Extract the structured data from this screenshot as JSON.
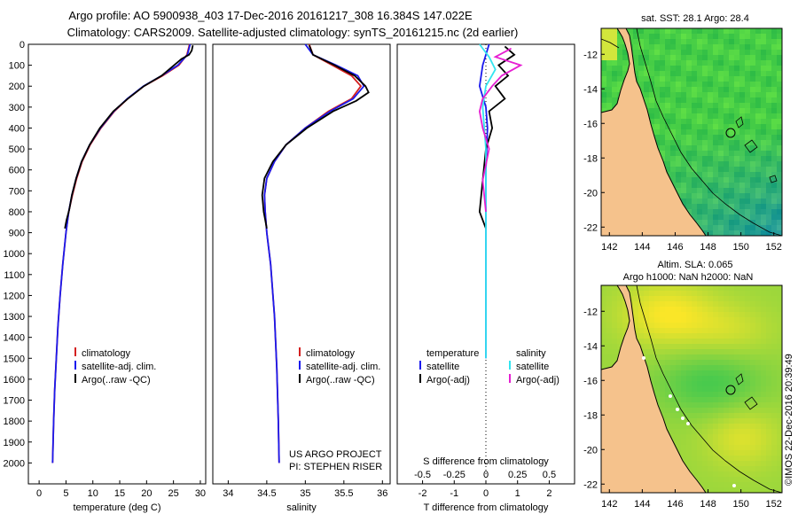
{
  "header": {
    "line1": "Argo profile: AO 5900938_403 17-Dec-2016 20161217_308 16.384S 147.022E",
    "line2": "Climatology: CARS2009. Satellite-adjusted climatology: synTS_20161215.nc (2d earlier)"
  },
  "colors": {
    "climatology": "#d42020",
    "satellite": "#1a1aee",
    "argo": "#000000",
    "sat_salinity": "#33e5f0",
    "argo_salinity": "#e61ed2",
    "land": "#f5c28c"
  },
  "chart_data": [
    {
      "id": "temperature",
      "type": "line",
      "xlabel": "temperature (deg C)",
      "ylabel": "",
      "xlim": [
        -2,
        31
      ],
      "ylim": [
        2100,
        0
      ],
      "xticks": [
        0,
        5,
        10,
        15,
        20,
        25,
        30
      ],
      "yticks": [
        0,
        100,
        200,
        300,
        400,
        500,
        600,
        700,
        800,
        900,
        1000,
        1100,
        1200,
        1300,
        1400,
        1500,
        1600,
        1700,
        1800,
        1900,
        2000
      ],
      "legend": [
        "climatology",
        "satellite-adj. clim.",
        "Argo(..raw -QC)"
      ],
      "series": [
        {
          "name": "climatology",
          "color": "#d42020",
          "x": [
            28.0,
            27.5,
            26,
            23,
            19.5,
            16.5,
            14,
            11.5,
            9.5,
            8,
            7,
            6.2,
            5.5,
            5,
            4.4,
            3.9,
            3.5,
            3.2,
            2.9,
            2.7,
            2.5
          ],
          "y": [
            0,
            50,
            100,
            150,
            200,
            260,
            320,
            400,
            480,
            560,
            640,
            720,
            800,
            900,
            1050,
            1200,
            1350,
            1500,
            1650,
            1800,
            2000
          ]
        },
        {
          "name": "satellite-adj. clim.",
          "color": "#1a1aee",
          "x": [
            28.1,
            27.6,
            25.8,
            22.8,
            19.4,
            16.4,
            13.9,
            11.4,
            9.4,
            7.9,
            6.9,
            6.1,
            5.5,
            5,
            4.4,
            3.9,
            3.5,
            3.2,
            2.9,
            2.7,
            2.5
          ],
          "y": [
            0,
            50,
            100,
            150,
            200,
            260,
            320,
            400,
            480,
            560,
            640,
            720,
            800,
            900,
            1050,
            1200,
            1350,
            1500,
            1650,
            1800,
            2000
          ]
        },
        {
          "name": "Argo(..raw -QC)",
          "color": "#000000",
          "x": [
            28.6,
            28.4,
            27.9,
            26.5,
            22.8,
            19.5,
            16.5,
            13.8,
            11.3,
            9.4,
            7.9,
            6.9,
            6.1,
            5.6,
            5.1,
            4.8
          ],
          "y": [
            5,
            30,
            50,
            70,
            150,
            200,
            260,
            320,
            400,
            480,
            560,
            640,
            720,
            790,
            840,
            880
          ]
        }
      ]
    },
    {
      "id": "salinity",
      "type": "line",
      "xlabel": "salinity",
      "ylabel": "",
      "xlim": [
        33.8,
        36.1
      ],
      "ylim": [
        2100,
        0
      ],
      "xticks": [
        34,
        34.5,
        35,
        35.5,
        36
      ],
      "legend": [
        "climatology",
        "satellite-adj. clim.",
        "Argo(..raw -QC)"
      ],
      "annotation": [
        "US ARGO PROJECT",
        "PI: STEPHEN RISER"
      ],
      "series": [
        {
          "name": "climatology",
          "color": "#d42020",
          "x": [
            35.05,
            35.1,
            35.35,
            35.6,
            35.72,
            35.6,
            35.3,
            35.0,
            34.75,
            34.6,
            34.5,
            34.47,
            34.48,
            34.5,
            34.55,
            34.6,
            34.63,
            34.65,
            34.66
          ],
          "y": [
            0,
            50,
            100,
            150,
            200,
            260,
            320,
            400,
            480,
            560,
            640,
            720,
            800,
            900,
            1050,
            1300,
            1550,
            1800,
            2000
          ]
        },
        {
          "name": "satellite-adj. clim.",
          "color": "#1a1aee",
          "x": [
            35.0,
            35.1,
            35.4,
            35.68,
            35.76,
            35.62,
            35.32,
            35.0,
            34.75,
            34.6,
            34.5,
            34.47,
            34.48,
            34.5,
            34.55,
            34.6,
            34.63,
            34.65,
            34.66
          ],
          "y": [
            0,
            50,
            100,
            150,
            200,
            260,
            320,
            400,
            480,
            560,
            640,
            720,
            800,
            900,
            1050,
            1300,
            1550,
            1800,
            2000
          ]
        },
        {
          "name": "Argo(..raw -QC)",
          "color": "#000000",
          "x": [
            35.05,
            35.1,
            35.38,
            35.64,
            35.78,
            35.82,
            35.66,
            35.36,
            35.02,
            34.75,
            34.58,
            34.47,
            34.44,
            34.46,
            34.5
          ],
          "y": [
            5,
            50,
            100,
            150,
            200,
            230,
            270,
            320,
            400,
            480,
            560,
            640,
            720,
            800,
            880
          ]
        }
      ]
    },
    {
      "id": "difference",
      "type": "line",
      "xlabel": "T difference from climatology",
      "xlabel2": "S difference from climatology",
      "xlim": [
        -2.8,
        2.8
      ],
      "ylim": [
        2100,
        0
      ],
      "xticks": [
        -2,
        -1,
        0,
        1,
        2
      ],
      "xticks_s": [
        "-0.5",
        "-0.25",
        "0",
        "0.25",
        "0.5"
      ],
      "legend_left_title": "temperature",
      "legend_left": [
        "satellite",
        "Argo(-adj)"
      ],
      "legend_right_title": "salinity",
      "legend_right": [
        "satellite",
        "Argo(-adj)"
      ],
      "series": [
        {
          "name": "T satellite",
          "color": "#1a1aee",
          "x": [
            0.1,
            -0.1,
            -0.2,
            0.0,
            0.05,
            0.0,
            0.0,
            0.0,
            0.0
          ],
          "y": [
            0,
            100,
            200,
            300,
            400,
            600,
            800,
            1200,
            1500
          ]
        },
        {
          "name": "T Argo(-adj)",
          "color": "#000000",
          "x": [
            0.6,
            0.9,
            0.4,
            0.7,
            0.3,
            0.6,
            0.1,
            0.2,
            0.0,
            -0.1,
            -0.2,
            0.0
          ],
          "y": [
            10,
            50,
            100,
            150,
            200,
            260,
            320,
            400,
            500,
            650,
            800,
            880
          ]
        },
        {
          "name": "S satellite",
          "color": "#33e5f0",
          "x": [
            -0.2,
            0.1,
            0.3,
            0.0,
            -0.1,
            0.0,
            0.0,
            0.0
          ],
          "y": [
            0,
            60,
            120,
            200,
            300,
            500,
            900,
            1500
          ]
        },
        {
          "name": "S Argo(-adj)",
          "color": "#e61ed2",
          "x": [
            0.8,
            0.3,
            1.1,
            0.5,
            0.2,
            -0.1,
            -0.2,
            -0.1,
            0.1,
            -0.1,
            0.0
          ],
          "y": [
            20,
            60,
            100,
            150,
            200,
            260,
            320,
            400,
            500,
            650,
            800
          ]
        }
      ]
    },
    {
      "id": "sst_map",
      "type": "heatmap",
      "title": "sat. SST: 28.1  Argo: 28.4",
      "xlim": [
        141.5,
        152.5
      ],
      "ylim": [
        -22.5,
        -10.5
      ],
      "xticks": [
        142,
        144,
        146,
        148,
        150,
        152
      ],
      "yticks": [
        -12,
        -14,
        -16,
        -18,
        -20,
        -22
      ],
      "profile_position": [
        147.022,
        -16.384
      ]
    },
    {
      "id": "sla_map",
      "type": "heatmap",
      "title_line1": "Altim. SLA: 0.065",
      "title_line2": "Argo h1000: NaN h2000: NaN",
      "xlim": [
        141.5,
        152.5
      ],
      "ylim": [
        -22.5,
        -10.5
      ],
      "xticks": [
        142,
        144,
        146,
        148,
        150,
        152
      ],
      "yticks": [
        -12,
        -14,
        -16,
        -18,
        -20,
        -22
      ],
      "profile_position": [
        147.022,
        -16.384
      ]
    }
  ],
  "footer": {
    "imos": "©IMOS 22-Dec-2016 20:39:49"
  }
}
